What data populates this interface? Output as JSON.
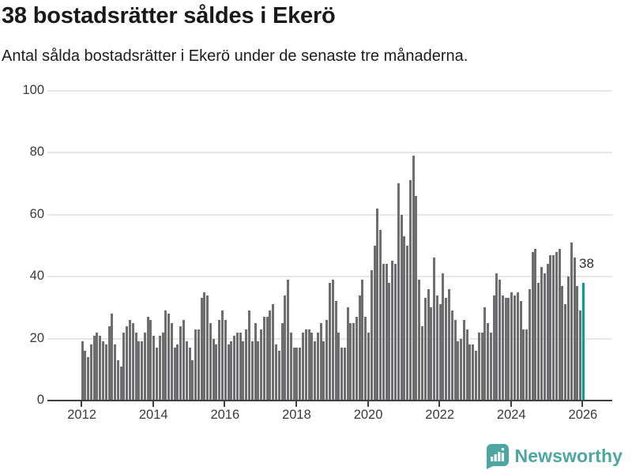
{
  "header": {
    "title": "38 bostadsrätter såldes i Ekerö",
    "subtitle": "Antal sålda bostadsrätter i Ekerö under de senaste tre månaderna."
  },
  "chart_data": {
    "type": "bar",
    "title": "38 bostadsrätter såldes i Ekerö",
    "subtitle": "Antal sålda bostadsrätter i Ekerö under de senaste tre månaderna.",
    "ylabel": "",
    "xlabel": "",
    "ylim": [
      0,
      100
    ],
    "grid": true,
    "legend": "none",
    "y_tick_labels": [
      "0",
      "20",
      "40",
      "60",
      "80",
      "100"
    ],
    "y_tick_values": [
      0,
      20,
      40,
      60,
      80,
      100
    ],
    "x_tick_labels": [
      "2012",
      "2014",
      "2016",
      "2018",
      "2020",
      "2022",
      "2024",
      "2026"
    ],
    "series_note": "monthly bars, Jan 2012 through Jan 2026, rolling 3-month totals",
    "values": [
      19,
      16,
      14,
      18,
      21,
      22,
      21,
      19,
      18,
      24,
      28,
      18,
      13,
      11,
      22,
      24,
      26,
      25,
      22,
      19,
      19,
      22,
      27,
      26,
      21,
      17,
      21,
      22,
      29,
      28,
      25,
      17,
      18,
      24,
      26,
      19,
      17,
      13,
      23,
      23,
      33,
      35,
      34,
      25,
      20,
      18,
      26,
      29,
      26,
      18,
      19,
      21,
      22,
      22,
      19,
      23,
      29,
      19,
      25,
      19,
      23,
      27,
      27,
      29,
      31,
      18,
      16,
      25,
      34,
      39,
      22,
      17,
      17,
      17,
      22,
      23,
      23,
      22,
      19,
      22,
      25,
      19,
      26,
      38,
      39,
      32,
      22,
      17,
      17,
      30,
      25,
      25,
      27,
      34,
      39,
      27,
      22,
      42,
      50,
      62,
      55,
      44,
      44,
      38,
      45,
      44,
      70,
      60,
      53,
      50,
      71,
      79,
      66,
      39,
      24,
      33,
      36,
      30,
      46,
      34,
      31,
      41,
      33,
      36,
      29,
      26,
      19,
      20,
      26,
      23,
      18,
      18,
      16,
      22,
      22,
      30,
      25,
      22,
      34,
      41,
      39,
      34,
      33,
      33,
      35,
      34,
      35,
      32,
      23,
      23,
      36,
      48,
      49,
      38,
      43,
      41,
      44,
      47,
      47,
      48,
      49,
      37,
      31,
      40,
      51,
      46,
      37,
      29,
      38
    ],
    "highlight_last_bar": true,
    "last_value_label": "38",
    "colors": {
      "bar": "#6e6e71",
      "highlight": "#00a2a0",
      "axis": "#404040",
      "grid": "#e7e7e7",
      "text": "#1c1c1c"
    }
  },
  "footer": {
    "brand": "Newsworthy",
    "brand_color": "#4ca6a1"
  }
}
